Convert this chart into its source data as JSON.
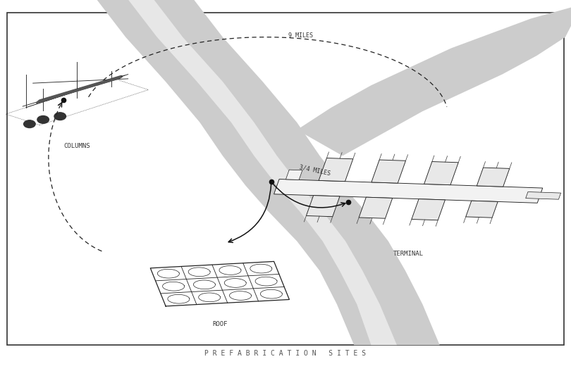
{
  "title": "P R E F A B R I C A T I O N   S I T E S",
  "title_fontsize": 7.0,
  "title_color": "#555555",
  "bg_color": "#ffffff",
  "border_color": "#333333",
  "river_color": "#cccccc",
  "dashed_color": "#222222",
  "arrow_color": "#111111",
  "dot_color": "#111111",
  "label_color": "#333333",
  "label_fontsize": 6.5,
  "distance_fontsize": 6.0,
  "columns_label": "COLUMNS",
  "roof_label": "ROOF",
  "terminal_label": "TERMINAL",
  "dist_3_4": "3/4 MILES",
  "dist_9": "9 MILES",
  "figsize": [
    8.1,
    5.27
  ],
  "dpi": 100
}
